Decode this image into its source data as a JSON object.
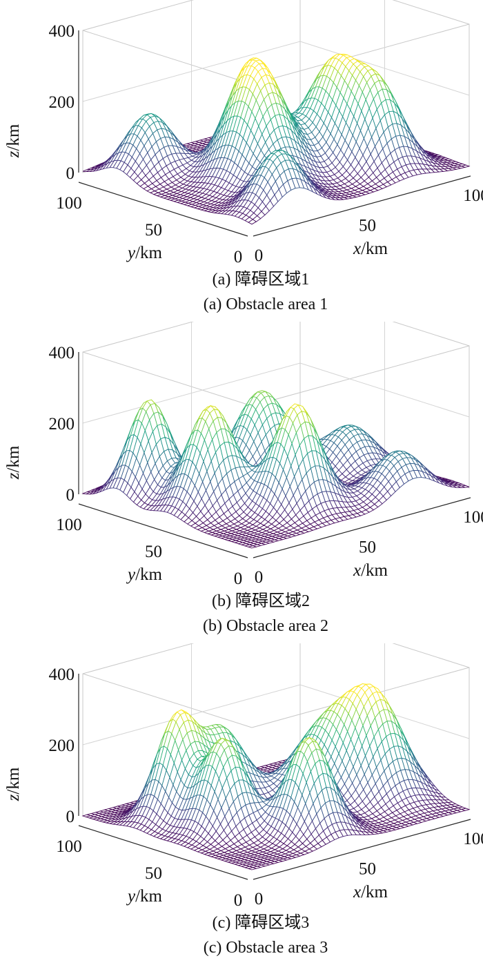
{
  "chart_data": [
    {
      "type": "surface",
      "caption_cn": "(a) 障碍区域1",
      "caption_en": "(a) Obstacle area 1",
      "zlabel_var": "z",
      "zlabel_unit": "/km",
      "ylabel_var": "y",
      "ylabel_unit": "/km",
      "xlabel_var": "x",
      "xlabel_unit": "/km",
      "xlim": [
        0,
        100
      ],
      "ylim": [
        0,
        100
      ],
      "zlim": [
        0,
        400
      ],
      "xticks": [
        "0",
        "50",
        "100"
      ],
      "yticks": [
        "0",
        "50",
        "100"
      ],
      "zticks": [
        "0",
        "200",
        "400"
      ],
      "colormap": "viridis",
      "grid": true,
      "peaks": [
        {
          "x": 15,
          "y": 80,
          "height": 170,
          "sigma_x": 9,
          "sigma_y": 9
        },
        {
          "x": 35,
          "y": 40,
          "height": 290,
          "sigma_x": 10,
          "sigma_y": 12
        },
        {
          "x": 42,
          "y": 55,
          "height": 170,
          "sigma_x": 9,
          "sigma_y": 9
        },
        {
          "x": 70,
          "y": 40,
          "height": 290,
          "sigma_x": 10,
          "sigma_y": 12
        },
        {
          "x": 75,
          "y": 20,
          "height": 190,
          "sigma_x": 9,
          "sigma_y": 9
        },
        {
          "x": 20,
          "y": 10,
          "height": 160,
          "sigma_x": 9,
          "sigma_y": 8
        }
      ]
    },
    {
      "type": "surface",
      "caption_cn": "(b) 障碍区域2",
      "caption_en": "(b) Obstacle area 2",
      "zlabel_var": "z",
      "zlabel_unit": "/km",
      "ylabel_var": "y",
      "ylabel_unit": "/km",
      "xlabel_var": "x",
      "xlabel_unit": "/km",
      "xlim": [
        0,
        100
      ],
      "ylim": [
        0,
        100
      ],
      "zlim": [
        0,
        400
      ],
      "xticks": [
        "0",
        "50",
        "100"
      ],
      "yticks": [
        "0",
        "50",
        "100"
      ],
      "zticks": [
        "0",
        "200",
        "400"
      ],
      "colormap": "viridis",
      "grid": true,
      "peaks": [
        {
          "x": 15,
          "y": 80,
          "height": 270,
          "sigma_x": 8,
          "sigma_y": 8
        },
        {
          "x": 20,
          "y": 50,
          "height": 290,
          "sigma_x": 9,
          "sigma_y": 9
        },
        {
          "x": 55,
          "y": 65,
          "height": 250,
          "sigma_x": 10,
          "sigma_y": 10
        },
        {
          "x": 40,
          "y": 25,
          "height": 300,
          "sigma_x": 9,
          "sigma_y": 9
        },
        {
          "x": 80,
          "y": 45,
          "height": 140,
          "sigma_x": 10,
          "sigma_y": 10
        },
        {
          "x": 75,
          "y": 10,
          "height": 130,
          "sigma_x": 10,
          "sigma_y": 9
        }
      ]
    },
    {
      "type": "surface",
      "caption_cn": "(c) 障碍区域3",
      "caption_en": "(c) Obstacle area 3",
      "zlabel_var": "z",
      "zlabel_unit": "/km",
      "ylabel_var": "y",
      "ylabel_unit": "/km",
      "xlabel_var": "x",
      "xlabel_unit": "/km",
      "xlim": [
        0,
        100
      ],
      "ylim": [
        0,
        100
      ],
      "zlim": [
        0,
        400
      ],
      "xticks": [
        "0",
        "50",
        "100"
      ],
      "yticks": [
        "0",
        "50",
        "100"
      ],
      "zticks": [
        "0",
        "200",
        "400"
      ],
      "colormap": "viridis",
      "grid": true,
      "peaks": [
        {
          "x": 20,
          "y": 70,
          "height": 280,
          "sigma_x": 8,
          "sigma_y": 8
        },
        {
          "x": 22,
          "y": 45,
          "height": 260,
          "sigma_x": 8,
          "sigma_y": 9
        },
        {
          "x": 40,
          "y": 70,
          "height": 220,
          "sigma_x": 9,
          "sigma_y": 10
        },
        {
          "x": 42,
          "y": 20,
          "height": 270,
          "sigma_x": 8,
          "sigma_y": 9
        },
        {
          "x": 72,
          "y": 50,
          "height": 200,
          "sigma_x": 12,
          "sigma_y": 12
        },
        {
          "x": 85,
          "y": 35,
          "height": 260,
          "sigma_x": 10,
          "sigma_y": 11
        }
      ]
    }
  ]
}
